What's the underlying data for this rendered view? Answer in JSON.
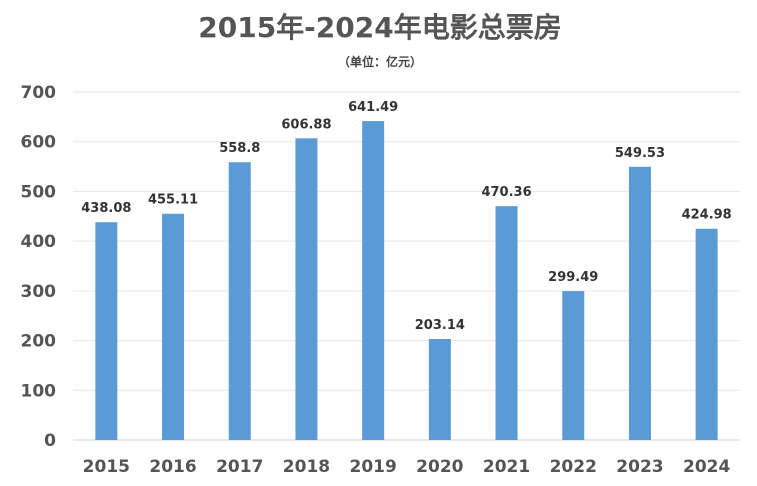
{
  "chart_data": {
    "type": "bar",
    "title": "2015年-2024年电影总票房",
    "subtitle": "（单位：亿元）",
    "categories": [
      "2015",
      "2016",
      "2017",
      "2018",
      "2019",
      "2020",
      "2021",
      "2022",
      "2023",
      "2024"
    ],
    "values": [
      438.08,
      455.11,
      558.8,
      606.88,
      641.49,
      203.14,
      470.36,
      299.49,
      549.53,
      424.98
    ],
    "value_labels": [
      "438.08",
      "455.11",
      "558.8",
      "606.88",
      "641.49",
      "203.14",
      "470.36",
      "299.49",
      "549.53",
      "424.98"
    ],
    "ylim": [
      0,
      700
    ],
    "yticks": [
      "0",
      "100",
      "200",
      "300",
      "400",
      "500",
      "600",
      "700"
    ],
    "grid": true,
    "bar_color": "#5b9bd5"
  }
}
